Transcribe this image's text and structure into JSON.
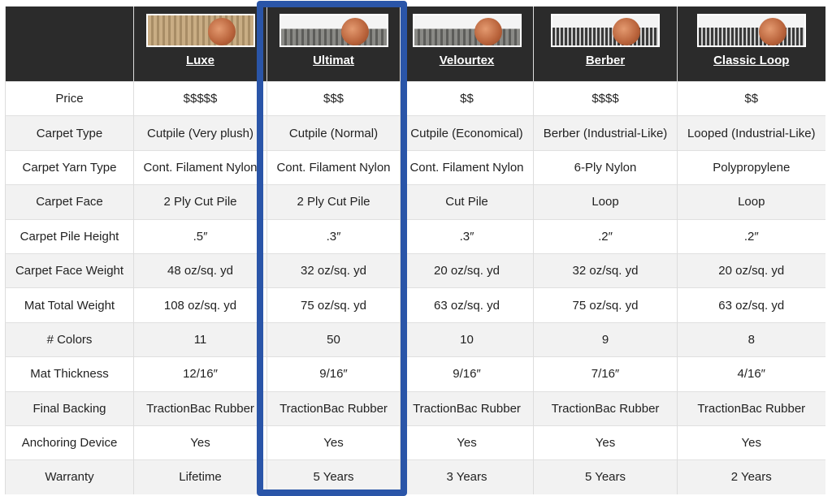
{
  "products": [
    {
      "name": "Luxe",
      "image": "carpet-sample-tan-with-penny"
    },
    {
      "name": "Ultimat",
      "image": "carpet-sample-gray-with-penny"
    },
    {
      "name": "Velourtex",
      "image": "carpet-sample-gray-with-penny"
    },
    {
      "name": "Berber",
      "image": "carpet-sample-dark-loop-with-penny"
    },
    {
      "name": "Classic Loop",
      "image": "carpet-sample-dark-loop-with-penny"
    }
  ],
  "highlight_color": "#2a55a8",
  "rows": [
    {
      "label": "Price",
      "values": [
        "$$$$$",
        "$$$",
        "$$",
        "$$$$",
        "$$"
      ]
    },
    {
      "label": "Carpet Type",
      "values": [
        "Cutpile (Very plush)",
        "Cutpile (Normal)",
        "Cutpile (Economical)",
        "Berber (Industrial-Like)",
        "Looped (Industrial-Like)"
      ]
    },
    {
      "label": "Carpet Yarn Type",
      "values": [
        "Cont. Filament Nylon",
        "Cont. Filament Nylon",
        "Cont. Filament Nylon",
        "6-Ply Nylon",
        "Polypropylene"
      ]
    },
    {
      "label": "Carpet Face",
      "values": [
        "2 Ply Cut Pile",
        "2 Ply Cut Pile",
        "Cut Pile",
        "Loop",
        "Loop"
      ]
    },
    {
      "label": "Carpet Pile Height",
      "values": [
        ".5″",
        ".3″",
        ".3″",
        ".2″",
        ".2″"
      ]
    },
    {
      "label": "Carpet Face Weight",
      "values": [
        "48 oz/sq. yd",
        "32 oz/sq. yd",
        "20 oz/sq. yd",
        "32 oz/sq. yd",
        "20 oz/sq. yd"
      ]
    },
    {
      "label": "Mat Total Weight",
      "values": [
        "108 oz/sq. yd",
        "75 oz/sq. yd",
        "63 oz/sq. yd",
        "75 oz/sq. yd",
        "63 oz/sq. yd"
      ]
    },
    {
      "label": "# Colors",
      "values": [
        "11",
        "50",
        "10",
        "9",
        "8"
      ]
    },
    {
      "label": "Mat Thickness",
      "values": [
        "12/16″",
        "9/16″",
        "9/16″",
        "7/16″",
        "4/16″"
      ]
    },
    {
      "label": "Final Backing",
      "values": [
        "TractionBac Rubber",
        "TractionBac Rubber",
        "TractionBac Rubber",
        "TractionBac Rubber",
        "TractionBac Rubber"
      ]
    },
    {
      "label": "Anchoring Device",
      "values": [
        "Yes",
        "Yes",
        "Yes",
        "Yes",
        "Yes"
      ]
    },
    {
      "label": "Warranty",
      "values": [
        "Lifetime",
        "5 Years",
        "3 Years",
        "5 Years",
        "2 Years"
      ]
    }
  ]
}
